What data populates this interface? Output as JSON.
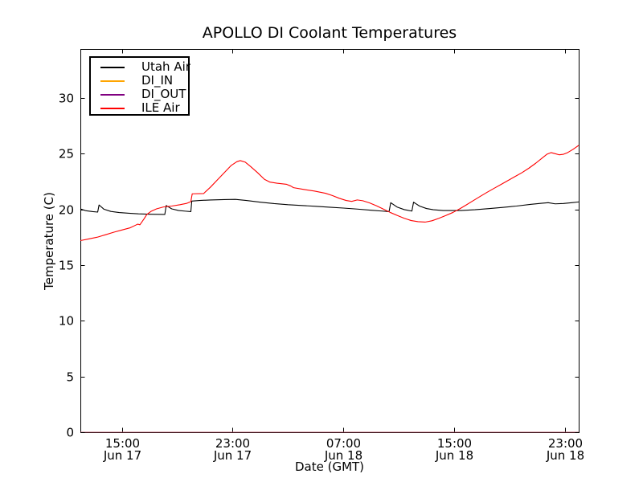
{
  "chart_data": {
    "type": "line",
    "title": "APOLLO DI Coolant Temperatures",
    "xlabel": "Date (GMT)",
    "ylabel": "Temperature (C)",
    "x_unit": "hours after 12:00 GMT Jun 17",
    "xlim": [
      0,
      36
    ],
    "ylim": [
      0,
      34.4
    ],
    "grid": false,
    "legend_position": "upper left",
    "background_color": "#ffffff",
    "frame_color": "#000000",
    "y_ticks": [
      0,
      5,
      10,
      15,
      20,
      25,
      30
    ],
    "x_ticks": [
      {
        "t": 3,
        "time": "15:00",
        "date": "Jun 17"
      },
      {
        "t": 11,
        "time": "23:00",
        "date": "Jun 17"
      },
      {
        "t": 19,
        "time": "07:00",
        "date": "Jun 18"
      },
      {
        "t": 27,
        "time": "15:00",
        "date": "Jun 18"
      },
      {
        "t": 35,
        "time": "23:00",
        "date": "Jun 18"
      }
    ],
    "series": [
      {
        "name": "Utah Air",
        "color": "#000000",
        "points": [
          [
            0,
            20.05
          ],
          [
            0.4,
            19.88
          ],
          [
            0.9,
            19.8
          ],
          [
            1.25,
            19.76
          ],
          [
            1.35,
            20.4
          ],
          [
            1.7,
            20.02
          ],
          [
            2.2,
            19.82
          ],
          [
            2.8,
            19.72
          ],
          [
            3.5,
            19.66
          ],
          [
            4.2,
            19.6
          ],
          [
            5,
            19.57
          ],
          [
            6.1,
            19.55
          ],
          [
            6.2,
            20.35
          ],
          [
            6.6,
            20.05
          ],
          [
            7.1,
            19.9
          ],
          [
            7.6,
            19.84
          ],
          [
            7.98,
            19.8
          ],
          [
            8.05,
            20.75
          ],
          [
            8.6,
            20.8
          ],
          [
            9.4,
            20.85
          ],
          [
            10.4,
            20.88
          ],
          [
            11.2,
            20.9
          ],
          [
            12,
            20.8
          ],
          [
            13,
            20.65
          ],
          [
            14,
            20.52
          ],
          [
            15,
            20.42
          ],
          [
            16,
            20.35
          ],
          [
            17,
            20.28
          ],
          [
            18,
            20.2
          ],
          [
            19,
            20.12
          ],
          [
            20,
            20.03
          ],
          [
            21,
            19.93
          ],
          [
            21.8,
            19.85
          ],
          [
            22.3,
            19.8
          ],
          [
            22.42,
            20.6
          ],
          [
            22.9,
            20.2
          ],
          [
            23.4,
            19.98
          ],
          [
            23.95,
            19.85
          ],
          [
            24.07,
            20.65
          ],
          [
            24.5,
            20.3
          ],
          [
            25,
            20.08
          ],
          [
            25.5,
            19.97
          ],
          [
            26.2,
            19.9
          ],
          [
            27.5,
            19.9
          ],
          [
            28.5,
            19.97
          ],
          [
            29.5,
            20.07
          ],
          [
            30.5,
            20.18
          ],
          [
            31.5,
            20.3
          ],
          [
            32.5,
            20.45
          ],
          [
            33.3,
            20.55
          ],
          [
            33.8,
            20.6
          ],
          [
            34.3,
            20.5
          ],
          [
            34.9,
            20.53
          ],
          [
            35.5,
            20.6
          ],
          [
            36,
            20.67
          ]
        ]
      },
      {
        "name": "DI_IN",
        "color": "#ffa500",
        "opacity": 0.55,
        "points": [
          [
            0,
            0
          ],
          [
            36,
            0
          ]
        ]
      },
      {
        "name": "DI_OUT",
        "color": "#800080",
        "opacity": 0.5,
        "points": [
          [
            0,
            0
          ],
          [
            36,
            0
          ]
        ]
      },
      {
        "name": "ILE Air",
        "color": "#ff0000",
        "points": [
          [
            0,
            17.2
          ],
          [
            0.6,
            17.35
          ],
          [
            1.2,
            17.5
          ],
          [
            1.8,
            17.72
          ],
          [
            2.4,
            17.95
          ],
          [
            3,
            18.15
          ],
          [
            3.6,
            18.35
          ],
          [
            4.05,
            18.62
          ],
          [
            4.15,
            18.68
          ],
          [
            4.3,
            18.62
          ],
          [
            4.6,
            19.15
          ],
          [
            4.8,
            19.55
          ],
          [
            5.1,
            19.82
          ],
          [
            5.5,
            20.05
          ],
          [
            6,
            20.22
          ],
          [
            6.6,
            20.3
          ],
          [
            7.2,
            20.42
          ],
          [
            7.7,
            20.55
          ],
          [
            7.98,
            20.7
          ],
          [
            8.08,
            21.4
          ],
          [
            8.9,
            21.42
          ],
          [
            9.4,
            22.0
          ],
          [
            9.9,
            22.65
          ],
          [
            10.4,
            23.3
          ],
          [
            10.9,
            23.95
          ],
          [
            11.3,
            24.28
          ],
          [
            11.55,
            24.38
          ],
          [
            11.9,
            24.25
          ],
          [
            12.3,
            23.85
          ],
          [
            12.8,
            23.3
          ],
          [
            13.3,
            22.7
          ],
          [
            13.7,
            22.45
          ],
          [
            14.2,
            22.35
          ],
          [
            14.9,
            22.25
          ],
          [
            15.2,
            22.1
          ],
          [
            15.4,
            21.95
          ],
          [
            16.1,
            21.8
          ],
          [
            16.9,
            21.65
          ],
          [
            17.7,
            21.45
          ],
          [
            18.2,
            21.25
          ],
          [
            18.7,
            21.0
          ],
          [
            19.2,
            20.8
          ],
          [
            19.6,
            20.72
          ],
          [
            20,
            20.85
          ],
          [
            20.4,
            20.78
          ],
          [
            20.9,
            20.58
          ],
          [
            21.4,
            20.32
          ],
          [
            21.9,
            20.02
          ],
          [
            22.4,
            19.72
          ],
          [
            22.9,
            19.45
          ],
          [
            23.4,
            19.2
          ],
          [
            23.9,
            19.0
          ],
          [
            24.4,
            18.9
          ],
          [
            24.9,
            18.86
          ],
          [
            25.4,
            18.98
          ],
          [
            25.9,
            19.2
          ],
          [
            26.4,
            19.45
          ],
          [
            26.9,
            19.72
          ],
          [
            27.4,
            20.05
          ],
          [
            27.9,
            20.42
          ],
          [
            28.4,
            20.8
          ],
          [
            28.9,
            21.18
          ],
          [
            29.4,
            21.55
          ],
          [
            29.9,
            21.9
          ],
          [
            30.4,
            22.25
          ],
          [
            30.9,
            22.6
          ],
          [
            31.4,
            22.95
          ],
          [
            31.9,
            23.3
          ],
          [
            32.4,
            23.7
          ],
          [
            32.9,
            24.15
          ],
          [
            33.3,
            24.55
          ],
          [
            33.7,
            24.95
          ],
          [
            34,
            25.1
          ],
          [
            34.3,
            25.0
          ],
          [
            34.6,
            24.9
          ],
          [
            34.9,
            24.95
          ],
          [
            35.2,
            25.1
          ],
          [
            35.6,
            25.4
          ],
          [
            36,
            25.75
          ]
        ]
      }
    ]
  }
}
